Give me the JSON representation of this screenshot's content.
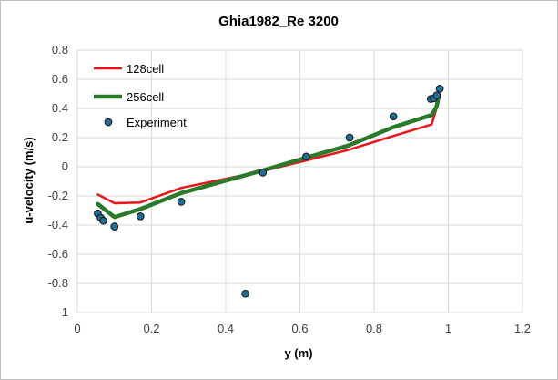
{
  "chart_data": {
    "type": "scatter",
    "title": "Ghia1982_Re 3200",
    "xlabel": "y (m)",
    "ylabel": "u-velocity (m/s)",
    "xlim": [
      0,
      1.2
    ],
    "ylim": [
      -1,
      0.8
    ],
    "x_ticks": [
      0,
      0.2,
      0.4,
      0.6,
      0.8,
      1,
      1.2
    ],
    "x_tick_labels": [
      "0",
      "0.2",
      "0.4",
      "0.6",
      "0.8",
      "1",
      "1.2"
    ],
    "y_ticks": [
      -1,
      -0.8,
      -0.6,
      -0.4,
      -0.2,
      0,
      0.2,
      0.4,
      0.6,
      0.8
    ],
    "y_tick_labels": [
      "-1",
      "-0.8",
      "-0.6",
      "-0.4",
      "-0.2",
      "0",
      "0.2",
      "0.4",
      "0.6",
      "0.8"
    ],
    "grid": true,
    "legend_position": "top-left",
    "series": [
      {
        "name": "128cell",
        "kind": "line",
        "color": "#e8161b",
        "x": [
          0.055,
          0.1,
          0.17,
          0.28,
          0.5,
          0.62,
          0.73,
          0.85,
          0.955,
          0.968,
          0.975
        ],
        "y": [
          -0.19,
          -0.25,
          -0.245,
          -0.145,
          -0.03,
          0.045,
          0.115,
          0.21,
          0.29,
          0.4,
          0.49
        ]
      },
      {
        "name": "256cell",
        "kind": "line",
        "color": "#2b7a2b",
        "x": [
          0.055,
          0.1,
          0.17,
          0.28,
          0.5,
          0.62,
          0.73,
          0.85,
          0.955,
          0.968,
          0.975
        ],
        "y": [
          -0.255,
          -0.345,
          -0.29,
          -0.18,
          -0.025,
          0.065,
          0.145,
          0.27,
          0.355,
          0.41,
          0.49
        ]
      },
      {
        "name": "Experiment",
        "kind": "markers",
        "color": "#1f6f99",
        "x": [
          0.055,
          0.063,
          0.07,
          0.1,
          0.17,
          0.28,
          0.453,
          0.5,
          0.617,
          0.734,
          0.852,
          0.953,
          0.961,
          0.969,
          0.977
        ],
        "y": [
          -0.32,
          -0.35,
          -0.37,
          -0.41,
          -0.34,
          -0.24,
          -0.87,
          -0.04,
          0.07,
          0.2,
          0.345,
          0.465,
          0.47,
          0.49,
          0.535
        ]
      }
    ]
  }
}
